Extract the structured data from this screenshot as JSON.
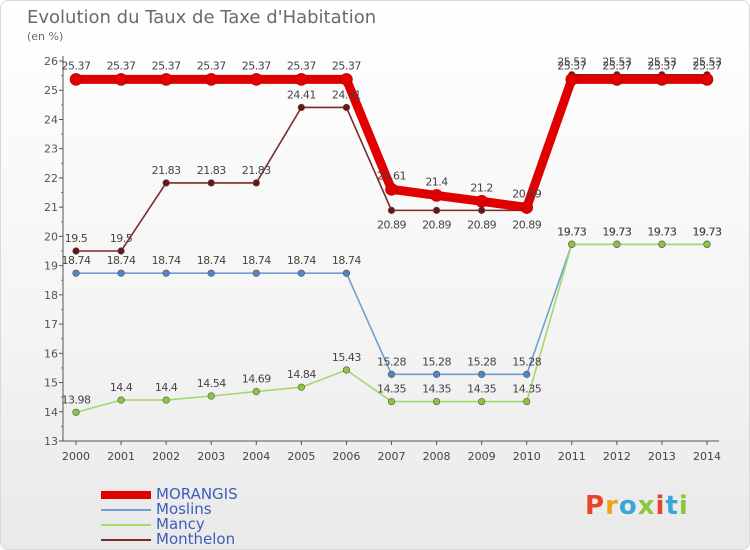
{
  "chart_title": "Evolution du Taux de Taxe d'Habitation",
  "chart_unit": "(en %)",
  "logo_text": "Proxiti",
  "logo_colors": [
    "#e8422b",
    "#f3a21c",
    "#3aa5d8",
    "#8cc63f",
    "#e8422b",
    "#3aa5d8",
    "#8cc63f"
  ],
  "chart_data": {
    "type": "line",
    "x": [
      "2000",
      "2001",
      "2002",
      "2003",
      "2004",
      "2005",
      "2006",
      "2007",
      "2008",
      "2009",
      "2010",
      "2011",
      "2012",
      "2013",
      "2014"
    ],
    "ylim": [
      13,
      26
    ],
    "yticks": [
      13,
      14,
      15,
      16,
      17,
      18,
      19,
      20,
      21,
      22,
      23,
      24,
      25,
      26
    ],
    "grid": false,
    "legend_position": "bottom-left",
    "series": [
      {
        "name": "MORANGIS",
        "color": "#e00000",
        "marker_color": "#e00000",
        "values": [
          25.37,
          25.37,
          25.37,
          25.37,
          25.37,
          25.37,
          25.37,
          21.61,
          21.4,
          21.2,
          20.99,
          25.37,
          25.37,
          25.37,
          25.37
        ],
        "labels": [
          "25.37",
          "25.37",
          "25.37",
          "25.37",
          "25.37",
          "25.37",
          "25.37",
          "21.61",
          "21.4",
          "21.2",
          "20.99",
          "25.37",
          "25.37",
          "25.37",
          "25.37"
        ]
      },
      {
        "name": "Moslins",
        "color": "#6f9fce",
        "marker_color": "#4f86c6",
        "values": [
          18.74,
          18.74,
          18.74,
          18.74,
          18.74,
          18.74,
          18.74,
          15.28,
          15.28,
          15.28,
          15.28,
          19.73,
          19.73,
          19.73,
          19.73
        ],
        "labels": [
          "18.74",
          "18.74",
          "18.74",
          "18.74",
          "18.74",
          "18.74",
          "18.74",
          "15.28",
          "15.28",
          "15.28",
          "15.28",
          "19.73",
          "19.73",
          "19.73",
          "19.73"
        ]
      },
      {
        "name": "Mancy",
        "color": "#a6d86e",
        "marker_color": "#8cc63f",
        "values": [
          13.98,
          14.4,
          14.4,
          14.54,
          14.69,
          14.84,
          15.43,
          14.35,
          14.35,
          14.35,
          14.35,
          19.73,
          19.73,
          19.73,
          19.73
        ],
        "labels": [
          "13.98",
          "14.4",
          "14.4",
          "14.54",
          "14.69",
          "14.84",
          "15.43",
          "14.35",
          "14.35",
          "14.35",
          "14.35",
          "19.73",
          "19.73",
          "19.73",
          "19.73"
        ]
      },
      {
        "name": "Monthelon",
        "color": "#7a2a2a",
        "marker_color": "#6b1515",
        "values": [
          19.5,
          19.5,
          21.83,
          21.83,
          21.83,
          24.41,
          24.41,
          20.89,
          20.89,
          20.89,
          20.89,
          25.53,
          25.53,
          25.53,
          25.53
        ],
        "labels": [
          "19.5",
          "19.5",
          "21.83",
          "21.83",
          "21.83",
          "24.41",
          "24.41",
          "20.89",
          "20.89",
          "20.89",
          "20.89",
          "25.53",
          "25.53",
          "25.53",
          "25.53"
        ]
      }
    ]
  }
}
